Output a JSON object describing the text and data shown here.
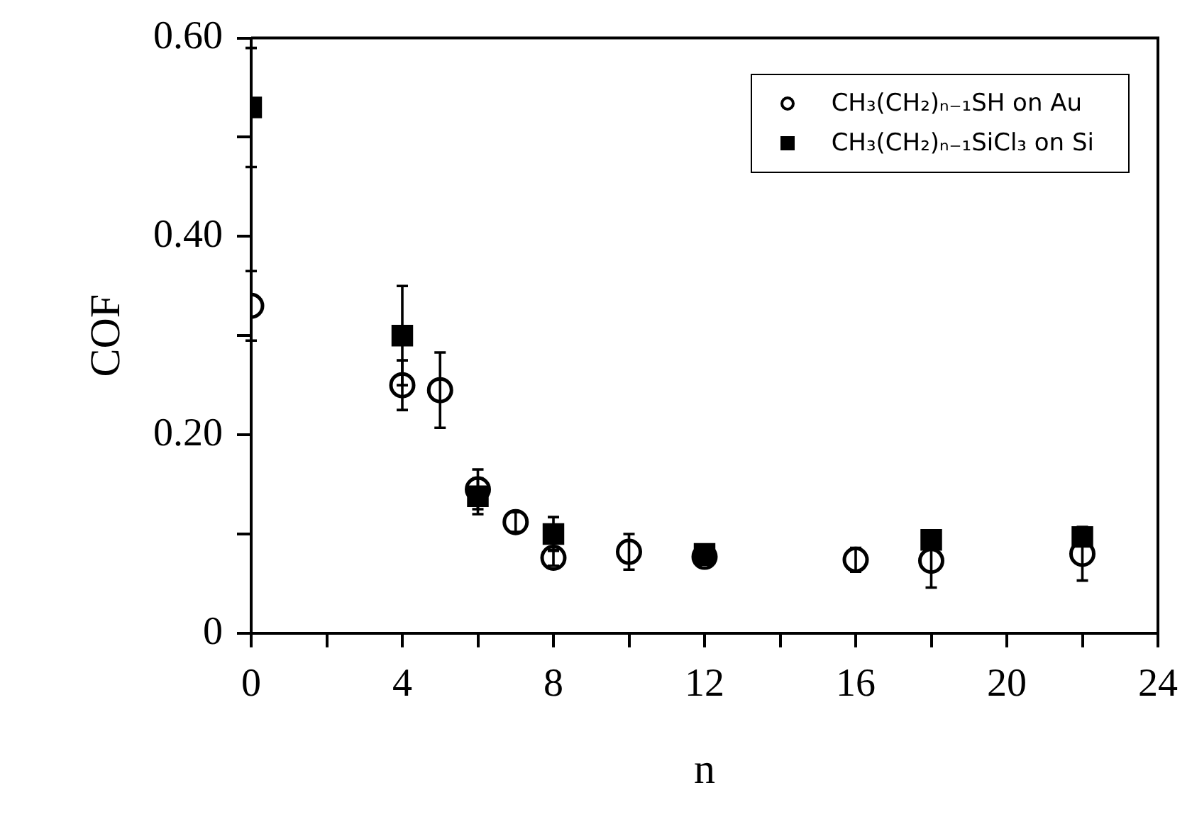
{
  "chart_data": {
    "type": "scatter",
    "xlabel": "n",
    "ylabel": "COF",
    "xlim": [
      0,
      24
    ],
    "ylim": [
      0,
      0.6
    ],
    "xticks": [
      0,
      {
        "value": 2,
        "label": null
      },
      4,
      {
        "value": 6,
        "label": null
      },
      8,
      {
        "value": 10,
        "label": null
      },
      12,
      {
        "value": 14,
        "label": null
      },
      16,
      {
        "value": 18,
        "label": null
      },
      20,
      {
        "value": 22,
        "label": null
      },
      24
    ],
    "yticks": [
      0,
      {
        "value": 0.1,
        "label": null
      },
      {
        "value": 0.2,
        "label": "0.20"
      },
      {
        "value": 0.3,
        "label": null
      },
      {
        "value": 0.4,
        "label": "0.40"
      },
      {
        "value": 0.5,
        "label": null
      },
      {
        "value": 0.6,
        "label": "0.60"
      }
    ],
    "grid": false,
    "legend": "top right",
    "series": [
      {
        "name": "CH₃(CH₂)ₙ₋₁SH on Au",
        "color": "#000000",
        "marker": "circle",
        "x": [
          0,
          4,
          5,
          6,
          7,
          8,
          10,
          12,
          16,
          18,
          22
        ],
        "values": [
          0.33,
          0.25,
          0.245,
          0.145,
          0.112,
          0.076,
          0.082,
          0.077,
          0.074,
          0.073,
          0.08
        ],
        "errors": [
          0.035,
          0.025,
          0.038,
          0.02,
          0.01,
          0.008,
          0.018,
          0.008,
          0.012,
          0.027,
          0.027
        ]
      },
      {
        "name": "CH₃(CH₂)ₙ₋₁SiCl₃ on Si",
        "color": "#000000",
        "marker": "square",
        "x": [
          0,
          4,
          6,
          8,
          12,
          18,
          22
        ],
        "values": [
          0.53,
          0.3,
          0.138,
          0.1,
          0.08,
          0.094,
          0.097
        ],
        "errors": [
          0.06,
          0.05,
          0.018,
          0.017,
          null,
          null,
          null
        ]
      }
    ]
  }
}
